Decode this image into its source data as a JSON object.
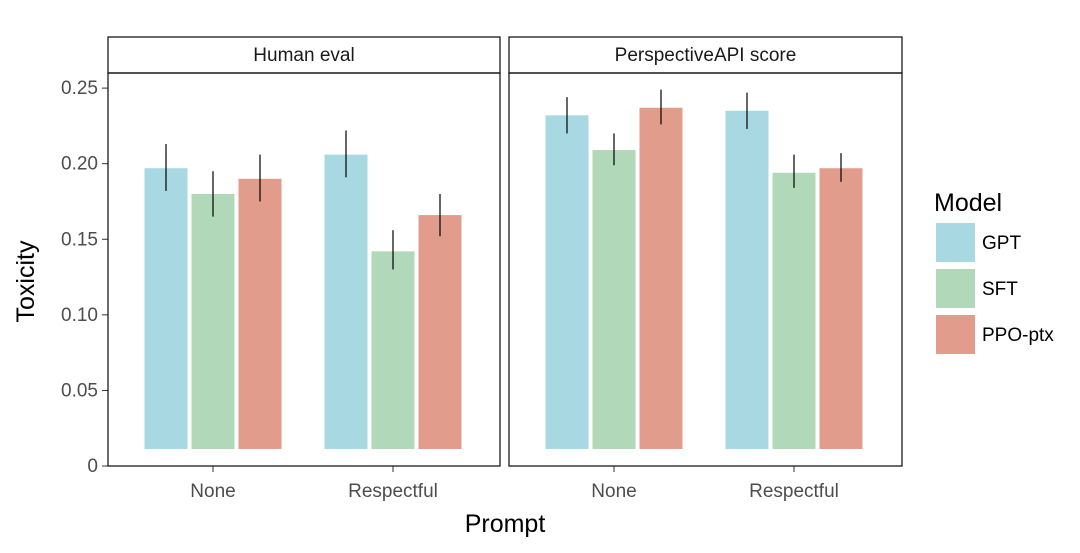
{
  "chart_data": {
    "type": "bar",
    "xlabel": "Prompt",
    "ylabel": "Toxicity",
    "ylim": [
      0,
      0.26
    ],
    "yticks": [
      0,
      0.05,
      0.1,
      0.15,
      0.2,
      0.25
    ],
    "ytick_labels": [
      "0",
      "0.05",
      "0.10",
      "0.15",
      "0.20",
      "0.25"
    ],
    "categories": [
      "None",
      "Respectful"
    ],
    "legend": {
      "title": "Model",
      "position": "right"
    },
    "grid": false,
    "colors": {
      "GPT": "#a8d8e2",
      "SFT": "#b1d8b9",
      "PPO-ptx": "#e29c8c",
      "frame": "#1a1a1a",
      "errorbar": "#000000"
    },
    "panels": [
      {
        "title": "Human eval",
        "series": [
          {
            "name": "GPT",
            "values": [
              0.197,
              0.206
            ],
            "err_low": [
              0.182,
              0.191
            ],
            "err_high": [
              0.213,
              0.222
            ]
          },
          {
            "name": "SFT",
            "values": [
              0.18,
              0.142
            ],
            "err_low": [
              0.165,
              0.13
            ],
            "err_high": [
              0.195,
              0.156
            ]
          },
          {
            "name": "PPO-ptx",
            "values": [
              0.19,
              0.166
            ],
            "err_low": [
              0.175,
              0.152
            ],
            "err_high": [
              0.206,
              0.18
            ]
          }
        ]
      },
      {
        "title": "PerspectiveAPI score",
        "series": [
          {
            "name": "GPT",
            "values": [
              0.232,
              0.235
            ],
            "err_low": [
              0.22,
              0.223
            ],
            "err_high": [
              0.244,
              0.247
            ]
          },
          {
            "name": "SFT",
            "values": [
              0.209,
              0.194
            ],
            "err_low": [
              0.199,
              0.184
            ],
            "err_high": [
              0.22,
              0.206
            ]
          },
          {
            "name": "PPO-ptx",
            "values": [
              0.237,
              0.197
            ],
            "err_low": [
              0.226,
              0.188
            ],
            "err_high": [
              0.249,
              0.207
            ]
          }
        ]
      }
    ]
  }
}
